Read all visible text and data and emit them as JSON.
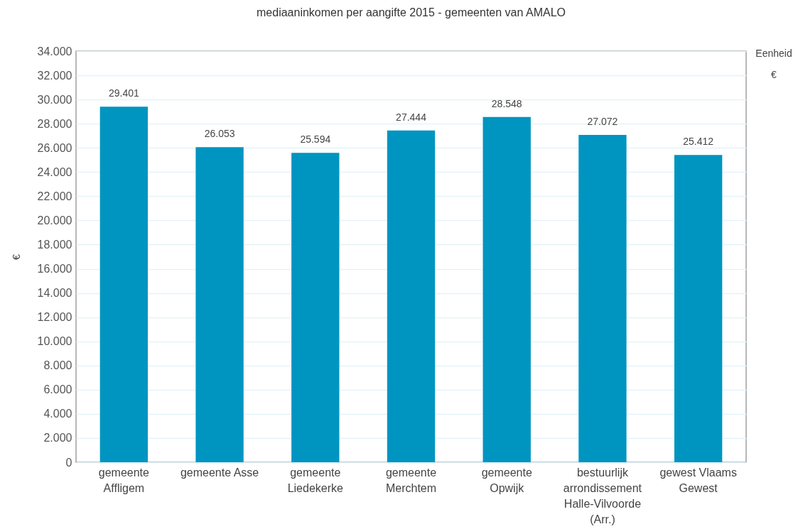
{
  "chart_data": {
    "type": "bar",
    "title": "mediaaninkomen per aangifte 2015 - gemeenten van AMALO",
    "ylabel": "€",
    "categories": [
      "gemeente Affligem",
      "gemeente Asse",
      "gemeente Liedekerke",
      "gemeente Merchtem",
      "gemeente Opwijk",
      "bestuurlijk arrondissement Halle-Vilvoorde (Arr.)",
      "gewest Vlaams Gewest"
    ],
    "values": [
      29401,
      26053,
      25594,
      27444,
      28548,
      27072,
      25412
    ],
    "value_labels": [
      "29.401",
      "26.053",
      "25.594",
      "27.444",
      "28.548",
      "27.072",
      "25.412"
    ],
    "color": "#0095c0",
    "ylim": [
      0,
      34000
    ],
    "yticks": [
      0,
      {
        "value": 2000,
        "label": "2.000"
      },
      {
        "value": 4000,
        "label": "4.000"
      },
      {
        "value": 6000,
        "label": "6.000"
      },
      {
        "value": 8000,
        "label": "8.000"
      },
      {
        "value": 10000,
        "label": "10.000"
      },
      {
        "value": 12000,
        "label": "12.000"
      },
      {
        "value": 14000,
        "label": "14.000"
      },
      {
        "value": 16000,
        "label": "16.000"
      },
      {
        "value": 18000,
        "label": "18.000"
      },
      {
        "value": 20000,
        "label": "20.000"
      },
      {
        "value": 22000,
        "label": "22.000"
      },
      {
        "value": 24000,
        "label": "24.000"
      },
      {
        "value": 26000,
        "label": "26.000"
      },
      {
        "value": 28000,
        "label": "28.000"
      },
      {
        "value": 30000,
        "label": "30.000"
      },
      {
        "value": 32000,
        "label": "32.000"
      },
      {
        "value": 34000,
        "label": "34.000"
      }
    ],
    "grid": "y",
    "annotations": [
      "Eenheid",
      "€"
    ]
  }
}
